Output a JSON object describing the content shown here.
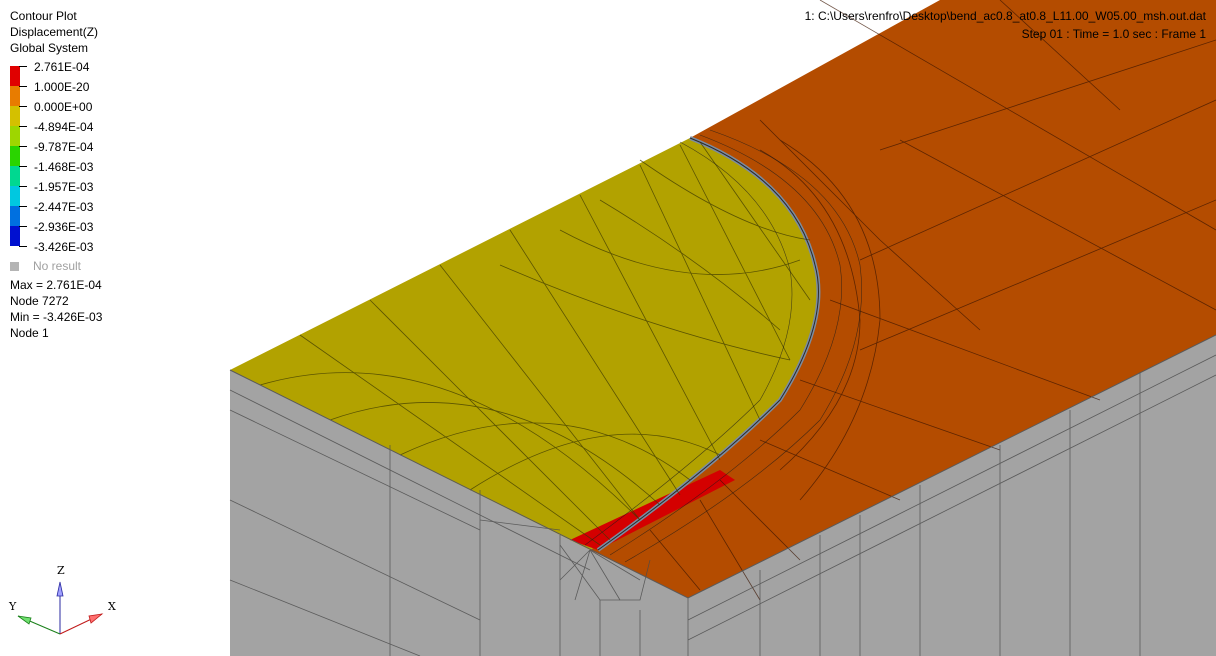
{
  "legend": {
    "plot_type": "Contour Plot",
    "result": "Displacement(Z)",
    "system": "Global System",
    "levels": [
      {
        "label": "2.761E-04",
        "color": "#e00000"
      },
      {
        "label": "1.000E-20",
        "color": "#e87c00"
      },
      {
        "label": "0.000E+00",
        "color": "#d4c000"
      },
      {
        "label": "-4.894E-04",
        "color": "#9ed600"
      },
      {
        "label": "-9.787E-04",
        "color": "#2ad400"
      },
      {
        "label": "-1.468E-03",
        "color": "#00d890"
      },
      {
        "label": "-1.957E-03",
        "color": "#00c8e0"
      },
      {
        "label": "-2.447E-03",
        "color": "#0070e0"
      },
      {
        "label": "-2.936E-03",
        "color": "#0010d0"
      },
      {
        "label": "-3.426E-03",
        "color": ""
      }
    ],
    "no_result": "No result"
  },
  "stats": {
    "max": "Max = 2.761E-04",
    "max_node": "Node 7272",
    "min": "Min = -3.426E-03",
    "min_node": "Node 1"
  },
  "header": {
    "file": "1: C:\\Users\\renfro\\Desktop\\bend_ac0.8_at0.8_L11.00_W05.00_msh.out.dat",
    "step": "Step 01   : Time = 1.0 sec   : Frame 1"
  },
  "triad": {
    "z": "Z",
    "y": "Y",
    "x": "X"
  },
  "colors": {
    "side": "#a3a3a3",
    "top_orange": "#b44c00",
    "top_yellow": "#b2a200",
    "red_band": "#d40000",
    "crack_front": "#7c8ca0"
  }
}
